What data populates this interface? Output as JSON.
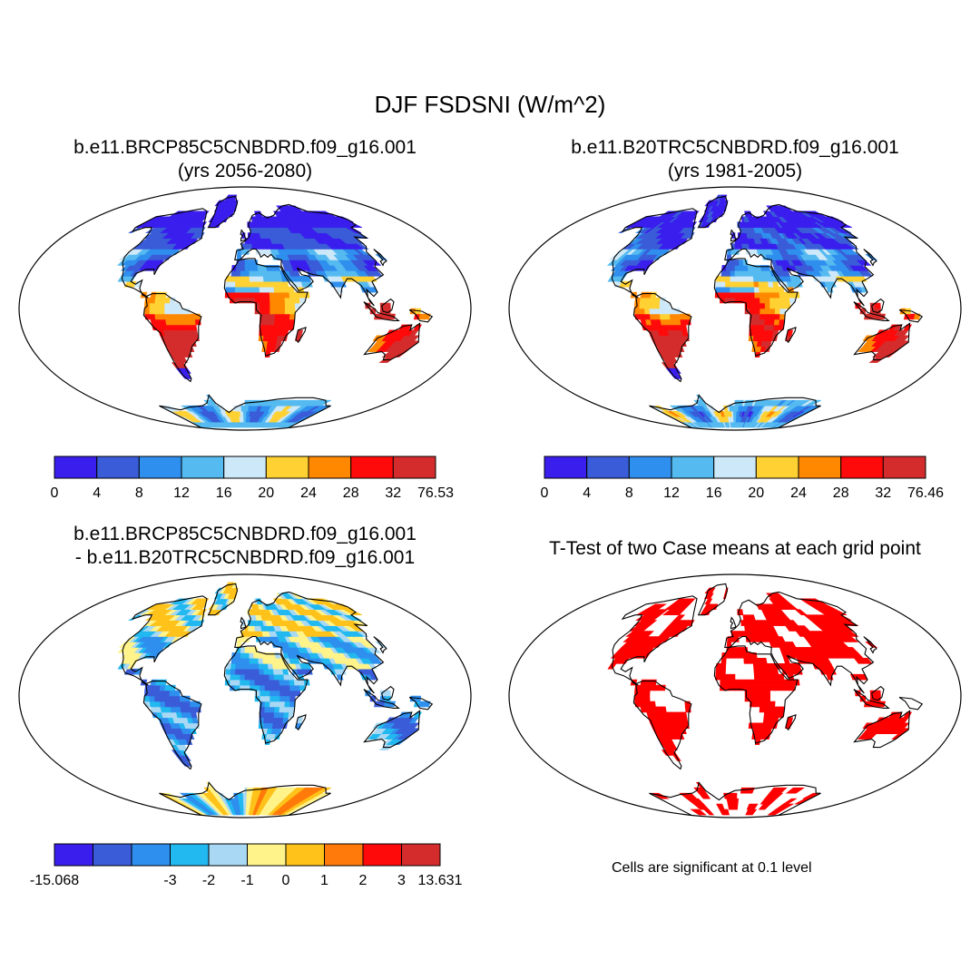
{
  "title": "DJF FSDSNI (W/m^2)",
  "panels": [
    {
      "title_line1": "b.e11.BRCP85C5CNBDRD.f09_g16.001",
      "title_line2": "(yrs 2056-2080)",
      "type": "field",
      "colorbar": {
        "colors": [
          "#3a1eee",
          "#3a5cd8",
          "#2f8fee",
          "#55baf0",
          "#cde8f8",
          "#ffd133",
          "#ff8800",
          "#ff0a0a",
          "#d42c2c"
        ],
        "labels": [
          "0",
          "4",
          "8",
          "12",
          "16",
          "20",
          "24",
          "28",
          "32",
          "76.53"
        ]
      }
    },
    {
      "title_line1": "b.e11.B20TRC5CNBDRD.f09_g16.001",
      "title_line2": "(yrs 1981-2005)",
      "type": "field",
      "colorbar": {
        "colors": [
          "#3a1eee",
          "#3a5cd8",
          "#2f8fee",
          "#55baf0",
          "#cde8f8",
          "#ffd133",
          "#ff8800",
          "#ff0a0a",
          "#d42c2c"
        ],
        "labels": [
          "0",
          "4",
          "8",
          "12",
          "16",
          "20",
          "24",
          "28",
          "32",
          "76.46"
        ]
      }
    },
    {
      "title_line1": "b.e11.BRCP85C5CNBDRD.f09_g16.001",
      "title_line2": "- b.e11.B20TRC5CNBDRD.f09_g16.001",
      "type": "difference",
      "colorbar": {
        "colors": [
          "#3a1eee",
          "#3a5cd8",
          "#2f8fee",
          "#22b8f0",
          "#a8d8f4",
          "#fff38a",
          "#ffc21a",
          "#ff7a0a",
          "#ff0a0a",
          "#d42c2c"
        ],
        "labels": [
          "-15.068",
          "-3",
          "-2",
          "-1",
          "0",
          "1",
          "2",
          "3",
          "13.631"
        ]
      }
    },
    {
      "title_line1": "T-Test of two Case means at each grid point",
      "title_line2": "",
      "type": "significance",
      "note": "Cells are significant at 0.1 level"
    }
  ]
}
